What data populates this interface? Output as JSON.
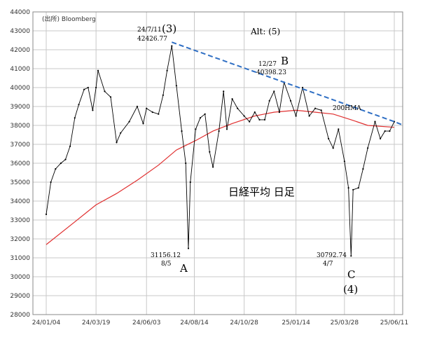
{
  "chart_data": {
    "type": "line",
    "source_label": "(出所) Bloomberg",
    "title": "日経平均 日足",
    "ylim": [
      28000,
      44000
    ],
    "y_ticks": [
      28000,
      29000,
      30000,
      31000,
      32000,
      33000,
      34000,
      35000,
      36000,
      37000,
      38000,
      39000,
      40000,
      41000,
      42000,
      43000,
      44000
    ],
    "x_ticks": [
      "24/01/04",
      "24/03/19",
      "24/06/03",
      "24/08/14",
      "24/10/28",
      "25/01/14",
      "25/03/28",
      "25/06/11"
    ],
    "grid": true,
    "series": [
      {
        "name": "",
        "kind": "price",
        "color": "#000000",
        "points": [
          [
            "24/01/04",
            33300
          ],
          [
            "24/01/11",
            35000
          ],
          [
            "24/01/18",
            35700
          ],
          [
            "24/01/26",
            36000
          ],
          [
            "24/02/02",
            36200
          ],
          [
            "24/02/09",
            36900
          ],
          [
            "24/02/16",
            38400
          ],
          [
            "24/02/22",
            39100
          ],
          [
            "24/03/01",
            39900
          ],
          [
            "24/03/07",
            40000
          ],
          [
            "24/03/14",
            38800
          ],
          [
            "24/03/19",
            40000
          ],
          [
            "24/03/22",
            40900
          ],
          [
            "24/04/01",
            39800
          ],
          [
            "24/04/10",
            39500
          ],
          [
            "24/04/19",
            37100
          ],
          [
            "24/04/25",
            37600
          ],
          [
            "24/05/08",
            38200
          ],
          [
            "24/05/20",
            39000
          ],
          [
            "24/05/29",
            38100
          ],
          [
            "24/06/03",
            38900
          ],
          [
            "24/06/12",
            38700
          ],
          [
            "24/06/21",
            38600
          ],
          [
            "24/06/28",
            39600
          ],
          [
            "24/07/04",
            40900
          ],
          [
            "24/07/11",
            42200
          ],
          [
            "24/07/18",
            40100
          ],
          [
            "24/07/26",
            37700
          ],
          [
            "24/08/01",
            36000
          ],
          [
            "24/08/05",
            31500
          ],
          [
            "24/08/08",
            35000
          ],
          [
            "24/08/16",
            37800
          ],
          [
            "24/08/23",
            38400
          ],
          [
            "24/08/30",
            38600
          ],
          [
            "24/09/06",
            36600
          ],
          [
            "24/09/11",
            35800
          ],
          [
            "24/09/20",
            37700
          ],
          [
            "24/09/27",
            39800
          ],
          [
            "24/10/02",
            37800
          ],
          [
            "24/10/10",
            39400
          ],
          [
            "24/10/18",
            38900
          ],
          [
            "24/10/28",
            38500
          ],
          [
            "24/11/05",
            38200
          ],
          [
            "24/11/13",
            38700
          ],
          [
            "24/11/20",
            38300
          ],
          [
            "24/11/28",
            38300
          ],
          [
            "24/12/05",
            39300
          ],
          [
            "24/12/12",
            39800
          ],
          [
            "24/12/20",
            38700
          ],
          [
            "24/12/27",
            40280
          ],
          [
            "25/01/06",
            39300
          ],
          [
            "25/01/14",
            38500
          ],
          [
            "25/01/24",
            40000
          ],
          [
            "25/02/03",
            38500
          ],
          [
            "25/02/12",
            38900
          ],
          [
            "25/02/21",
            38800
          ],
          [
            "25/03/04",
            37300
          ],
          [
            "25/03/11",
            36800
          ],
          [
            "25/03/19",
            37800
          ],
          [
            "25/03/28",
            36100
          ],
          [
            "25/04/03",
            34700
          ],
          [
            "25/04/07",
            31100
          ],
          [
            "25/04/10",
            34600
          ],
          [
            "25/04/18",
            34700
          ],
          [
            "25/04/25",
            35700
          ],
          [
            "25/05/02",
            36800
          ],
          [
            "25/05/13",
            38200
          ],
          [
            "25/05/21",
            37300
          ],
          [
            "25/05/28",
            37700
          ],
          [
            "25/06/04",
            37700
          ],
          [
            "25/06/11",
            38200
          ]
        ]
      },
      {
        "name": "200HMA",
        "kind": "moving-average",
        "color": "#e03030",
        "points": [
          [
            "24/01/04",
            31700
          ],
          [
            "24/02/16",
            32900
          ],
          [
            "24/03/19",
            33800
          ],
          [
            "24/04/19",
            34400
          ],
          [
            "24/05/20",
            35100
          ],
          [
            "24/06/21",
            35900
          ],
          [
            "24/07/18",
            36700
          ],
          [
            "24/08/16",
            37200
          ],
          [
            "24/09/11",
            37700
          ],
          [
            "24/10/10",
            38100
          ],
          [
            "24/11/13",
            38500
          ],
          [
            "24/12/12",
            38700
          ],
          [
            "25/01/14",
            38800
          ],
          [
            "25/02/12",
            38700
          ],
          [
            "25/03/11",
            38600
          ],
          [
            "25/04/07",
            38300
          ],
          [
            "25/05/02",
            38000
          ],
          [
            "25/06/11",
            37900
          ]
        ]
      },
      {
        "name": "",
        "kind": "trendline",
        "color": "#2f6fc4",
        "dashed": true,
        "points": [
          [
            "24/07/11",
            42400
          ],
          [
            "25/06/11",
            38200
          ],
          [
            "25/06/25",
            38000
          ]
        ]
      }
    ],
    "annotations": [
      {
        "x": "24/07/11",
        "y": 42426.77,
        "date_label": "24/7/11",
        "value_label": "42426.77",
        "wave_label": "(3)"
      },
      {
        "x": "24/12/27",
        "y": 40398.23,
        "date_label": "12/27",
        "value_label": "40398.23",
        "wave_label": "B"
      },
      {
        "x": "24/08/05",
        "y": 31156.12,
        "date_label": "8/5",
        "value_label": "31156.12",
        "wave_label": "A"
      },
      {
        "x": "25/04/07",
        "y": 30792.74,
        "date_label": "4/7",
        "value_label": "30792.74",
        "wave_label": "C",
        "wave_label2": "(4)"
      }
    ],
    "alt_label": "Alt: (5)"
  }
}
